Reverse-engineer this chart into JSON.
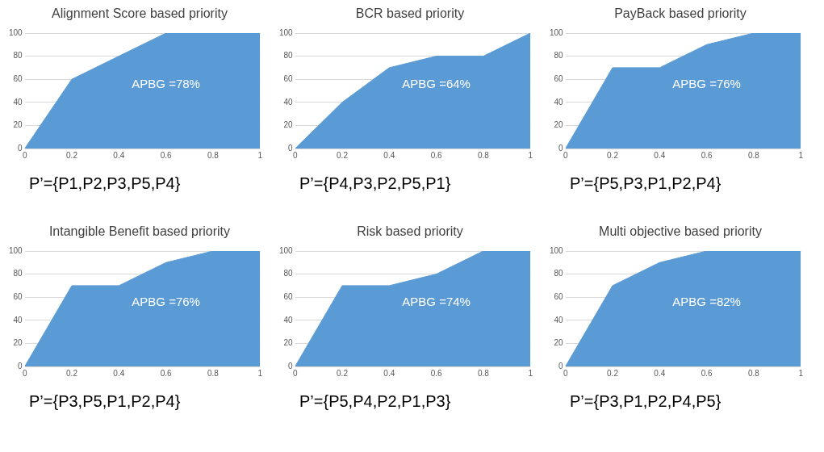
{
  "chart_data": [
    {
      "type": "area",
      "title": "Alignment Score based priority",
      "x": [
        0,
        0.2,
        0.4,
        0.6,
        0.8,
        1
      ],
      "series": [
        {
          "color": "#5b9bd5",
          "values": [
            0,
            60,
            80,
            100,
            100,
            100
          ]
        }
      ],
      "xlim": [
        0,
        1
      ],
      "xticks": [
        0,
        0.2,
        0.4,
        0.6,
        0.8,
        1
      ],
      "ylim": [
        0,
        100
      ],
      "yticks": [
        0,
        20,
        40,
        60,
        80,
        100
      ],
      "grid": "y",
      "annotations": [
        "APBG =78%",
        "P’={P1,P2,P3,P5,P4}"
      ]
    },
    {
      "type": "area",
      "title": "BCR based priority",
      "x": [
        0,
        0.2,
        0.4,
        0.6,
        0.8,
        1
      ],
      "series": [
        {
          "color": "#5b9bd5",
          "values": [
            0,
            40,
            70,
            80,
            80,
            100
          ]
        }
      ],
      "xlim": [
        0,
        1
      ],
      "xticks": [
        0,
        0.2,
        0.4,
        0.6,
        0.8,
        1
      ],
      "ylim": [
        0,
        100
      ],
      "yticks": [
        0,
        20,
        40,
        60,
        80,
        100
      ],
      "grid": "y",
      "annotations": [
        "APBG =64%",
        "P’={P4,P3,P2,P5,P1}"
      ]
    },
    {
      "type": "area",
      "title": "PayBack based priority",
      "x": [
        0,
        0.2,
        0.4,
        0.6,
        0.8,
        1
      ],
      "series": [
        {
          "color": "#5b9bd5",
          "values": [
            0,
            70,
            70,
            90,
            100,
            100
          ]
        }
      ],
      "xlim": [
        0,
        1
      ],
      "xticks": [
        0,
        0.2,
        0.4,
        0.6,
        0.8,
        1
      ],
      "ylim": [
        0,
        100
      ],
      "yticks": [
        0,
        20,
        40,
        60,
        80,
        100
      ],
      "grid": "y",
      "annotations": [
        "APBG =76%",
        "P’={P5,P3,P1,P2,P4}"
      ]
    },
    {
      "type": "area",
      "title": "Intangible Benefit based priority",
      "x": [
        0,
        0.2,
        0.4,
        0.6,
        0.8,
        1
      ],
      "series": [
        {
          "color": "#5b9bd5",
          "values": [
            0,
            70,
            70,
            90,
            100,
            100
          ]
        }
      ],
      "xlim": [
        0,
        1
      ],
      "xticks": [
        0,
        0.2,
        0.4,
        0.6,
        0.8,
        1
      ],
      "ylim": [
        0,
        100
      ],
      "yticks": [
        0,
        20,
        40,
        60,
        80,
        100
      ],
      "grid": "y",
      "annotations": [
        "APBG =76%",
        "P’={P3,P5,P1,P2,P4}"
      ]
    },
    {
      "type": "area",
      "title": "Risk based priority",
      "x": [
        0,
        0.2,
        0.4,
        0.6,
        0.8,
        1
      ],
      "series": [
        {
          "color": "#5b9bd5",
          "values": [
            0,
            70,
            70,
            80,
            100,
            100
          ]
        }
      ],
      "xlim": [
        0,
        1
      ],
      "xticks": [
        0,
        0.2,
        0.4,
        0.6,
        0.8,
        1
      ],
      "ylim": [
        0,
        100
      ],
      "yticks": [
        0,
        20,
        40,
        60,
        80,
        100
      ],
      "grid": "y",
      "annotations": [
        "APBG =74%",
        "P’={P5,P4,P2,P1,P3}"
      ]
    },
    {
      "type": "area",
      "title": "Multi objective based priority",
      "x": [
        0,
        0.2,
        0.4,
        0.6,
        0.8,
        1
      ],
      "series": [
        {
          "color": "#5b9bd5",
          "values": [
            0,
            70,
            90,
            100,
            100,
            100
          ]
        }
      ],
      "xlim": [
        0,
        1
      ],
      "xticks": [
        0,
        0.2,
        0.4,
        0.6,
        0.8,
        1
      ],
      "ylim": [
        0,
        100
      ],
      "yticks": [
        0,
        20,
        40,
        60,
        80,
        100
      ],
      "grid": "y",
      "annotations": [
        "APBG =82%",
        "P’={P3,P1,P2,P4,P5}"
      ]
    }
  ]
}
